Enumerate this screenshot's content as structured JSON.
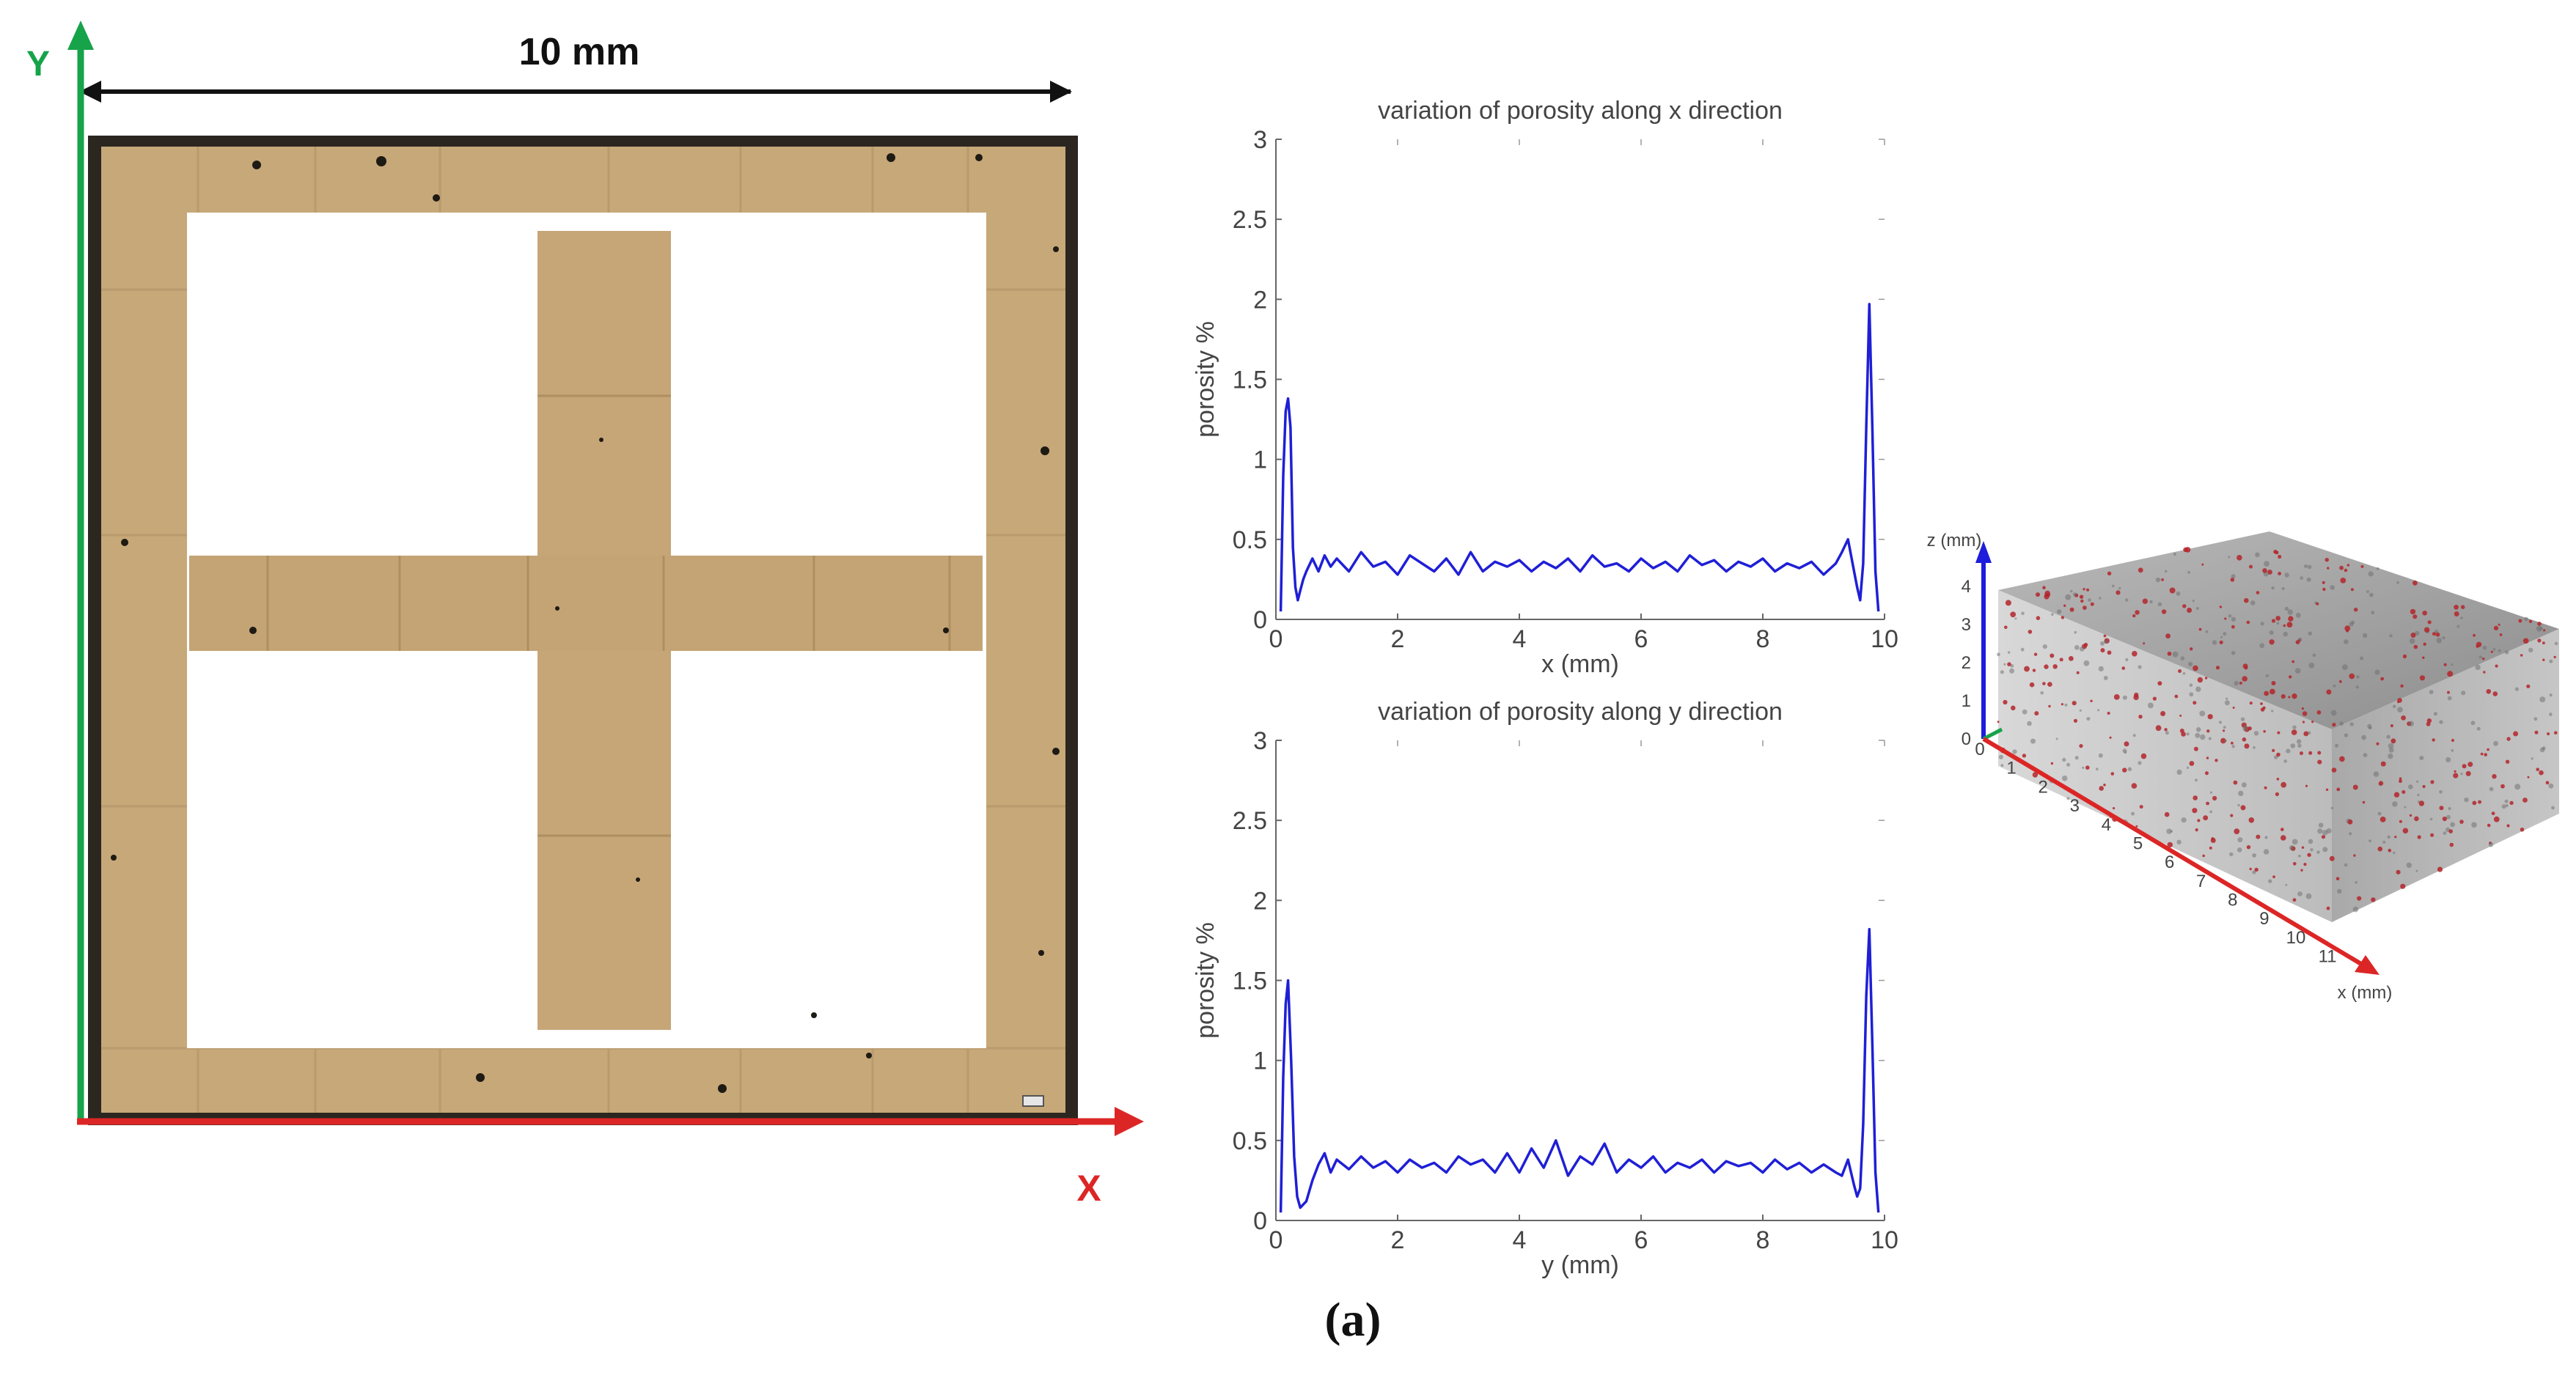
{
  "micrograph": {
    "dimension_label": "10 mm",
    "axis_y_label": "Y",
    "axis_x_label": "X"
  },
  "panel_label": "(a)",
  "chart_data": [
    {
      "type": "line",
      "title": "variation of porosity along x direction",
      "xlabel": "x (mm)",
      "ylabel": "porosity %",
      "xlim": [
        0,
        10
      ],
      "ylim": [
        0,
        3
      ],
      "xticks": [
        "0",
        "2",
        "4",
        "6",
        "8",
        "10"
      ],
      "yticks": [
        "0",
        "0.5",
        "1",
        "1.5",
        "2",
        "2.5",
        "3"
      ],
      "color": "#1f1fd6",
      "series": [
        {
          "x": [
            0.08,
            0.12,
            0.16,
            0.2,
            0.24,
            0.28,
            0.32,
            0.36,
            0.4,
            0.45,
            0.5,
            0.6,
            0.7,
            0.8,
            0.9,
            1.0,
            1.2,
            1.4,
            1.6,
            1.8,
            2.0,
            2.2,
            2.4,
            2.6,
            2.8,
            3.0,
            3.2,
            3.4,
            3.6,
            3.8,
            4.0,
            4.2,
            4.4,
            4.6,
            4.8,
            5.0,
            5.2,
            5.4,
            5.6,
            5.8,
            6.0,
            6.2,
            6.4,
            6.6,
            6.8,
            7.0,
            7.2,
            7.4,
            7.6,
            7.8,
            8.0,
            8.2,
            8.4,
            8.6,
            8.8,
            9.0,
            9.2,
            9.3,
            9.4,
            9.5,
            9.55,
            9.6,
            9.65,
            9.7,
            9.75,
            9.8,
            9.85,
            9.9
          ],
          "y": [
            0.05,
            0.9,
            1.3,
            1.38,
            1.2,
            0.45,
            0.2,
            0.12,
            0.18,
            0.25,
            0.3,
            0.38,
            0.3,
            0.4,
            0.33,
            0.38,
            0.3,
            0.42,
            0.33,
            0.36,
            0.28,
            0.4,
            0.35,
            0.3,
            0.38,
            0.28,
            0.42,
            0.3,
            0.36,
            0.33,
            0.37,
            0.3,
            0.36,
            0.32,
            0.38,
            0.3,
            0.4,
            0.33,
            0.35,
            0.3,
            0.38,
            0.32,
            0.36,
            0.3,
            0.4,
            0.34,
            0.37,
            0.3,
            0.36,
            0.33,
            0.38,
            0.3,
            0.35,
            0.32,
            0.36,
            0.28,
            0.35,
            0.42,
            0.5,
            0.3,
            0.2,
            0.12,
            0.35,
            1.2,
            1.97,
            1.2,
            0.3,
            0.05
          ]
        }
      ]
    },
    {
      "type": "line",
      "title": "variation of porosity along y direction",
      "xlabel": "y (mm)",
      "ylabel": "porosity %",
      "xlim": [
        0,
        10
      ],
      "ylim": [
        0,
        3
      ],
      "xticks": [
        "0",
        "2",
        "4",
        "6",
        "8",
        "10"
      ],
      "yticks": [
        "0",
        "0.5",
        "1",
        "1.5",
        "2",
        "2.5",
        "3"
      ],
      "color": "#1f1fd6",
      "series": [
        {
          "x": [
            0.08,
            0.12,
            0.16,
            0.2,
            0.25,
            0.3,
            0.35,
            0.4,
            0.45,
            0.5,
            0.6,
            0.7,
            0.8,
            0.9,
            1.0,
            1.2,
            1.4,
            1.6,
            1.8,
            2.0,
            2.2,
            2.4,
            2.6,
            2.8,
            3.0,
            3.2,
            3.4,
            3.6,
            3.8,
            4.0,
            4.2,
            4.4,
            4.6,
            4.8,
            5.0,
            5.2,
            5.4,
            5.6,
            5.8,
            6.0,
            6.2,
            6.4,
            6.6,
            6.8,
            7.0,
            7.2,
            7.4,
            7.6,
            7.8,
            8.0,
            8.2,
            8.4,
            8.6,
            8.8,
            9.0,
            9.2,
            9.3,
            9.4,
            9.5,
            9.55,
            9.6,
            9.65,
            9.7,
            9.75,
            9.8,
            9.85,
            9.9
          ],
          "y": [
            0.05,
            0.9,
            1.35,
            1.5,
            1.0,
            0.4,
            0.15,
            0.08,
            0.1,
            0.12,
            0.25,
            0.35,
            0.42,
            0.3,
            0.38,
            0.32,
            0.4,
            0.33,
            0.37,
            0.3,
            0.38,
            0.33,
            0.36,
            0.3,
            0.4,
            0.35,
            0.38,
            0.3,
            0.42,
            0.3,
            0.45,
            0.33,
            0.5,
            0.28,
            0.4,
            0.35,
            0.48,
            0.3,
            0.38,
            0.33,
            0.4,
            0.3,
            0.36,
            0.33,
            0.38,
            0.3,
            0.37,
            0.34,
            0.36,
            0.3,
            0.38,
            0.32,
            0.36,
            0.3,
            0.35,
            0.3,
            0.28,
            0.38,
            0.22,
            0.15,
            0.2,
            0.6,
            1.4,
            1.82,
            1.1,
            0.3,
            0.05
          ]
        }
      ]
    }
  ],
  "ct_scan": {
    "z_axis_label": "z (mm)",
    "x_axis_label": "x (mm)",
    "z_ticks": [
      "0",
      "1",
      "2",
      "3",
      "4"
    ],
    "x_ticks": [
      "0",
      "1",
      "2",
      "3",
      "4",
      "5",
      "6",
      "7",
      "8",
      "9",
      "10",
      "11"
    ]
  }
}
